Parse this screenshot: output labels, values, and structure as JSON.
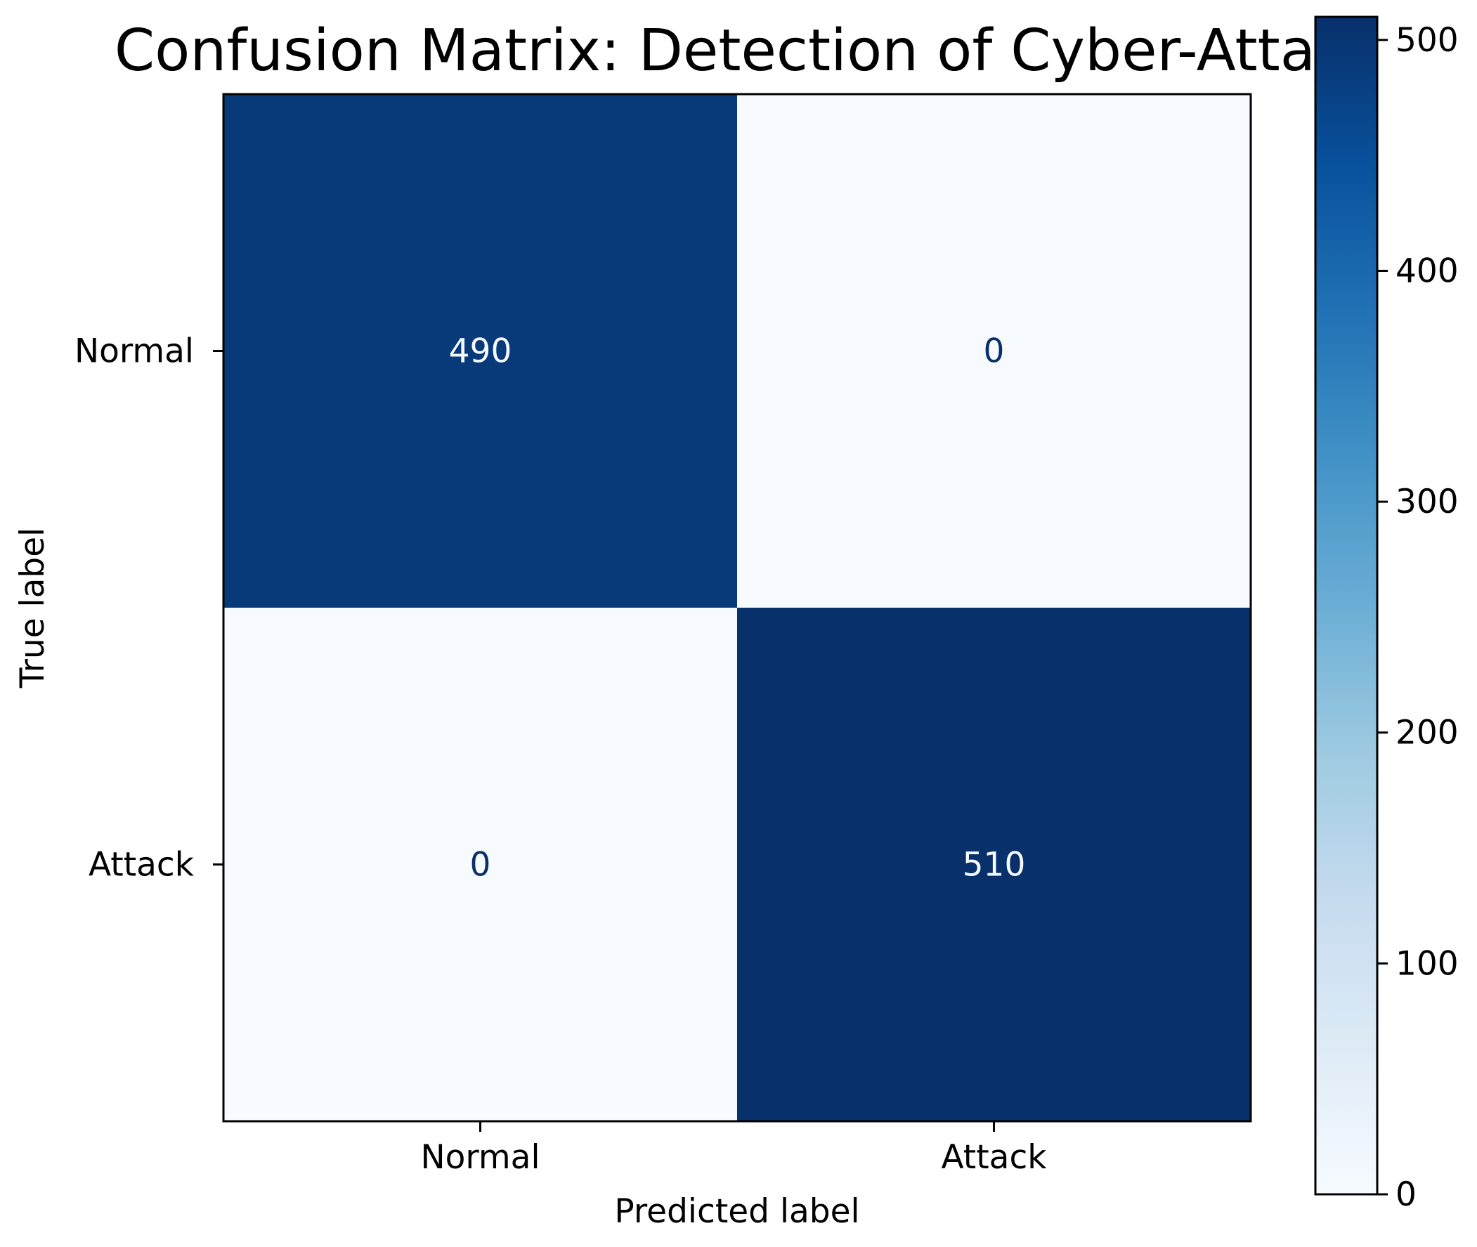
{
  "chart_data": {
    "type": "heatmap",
    "title": "Confusion Matrix: Detection of Cyber-Attac",
    "xlabel": "Predicted label",
    "ylabel": "True label",
    "x_categories": [
      "Normal",
      "Attack"
    ],
    "y_categories": [
      "Normal",
      "Attack"
    ],
    "values": [
      [
        490,
        0
      ],
      [
        0,
        510
      ]
    ],
    "colormap": "Blues",
    "colors": {
      "low": "#f7fbff",
      "high": "#08306b",
      "text_on_dark": "#f7fbff",
      "text_on_light": "#08306b"
    },
    "colorbar": {
      "range": [
        0,
        510
      ],
      "ticks": [
        0,
        100,
        200,
        300,
        400,
        500
      ],
      "tick_labels": [
        "0",
        "100",
        "200",
        "300",
        "400",
        "500"
      ]
    },
    "grid": false
  }
}
